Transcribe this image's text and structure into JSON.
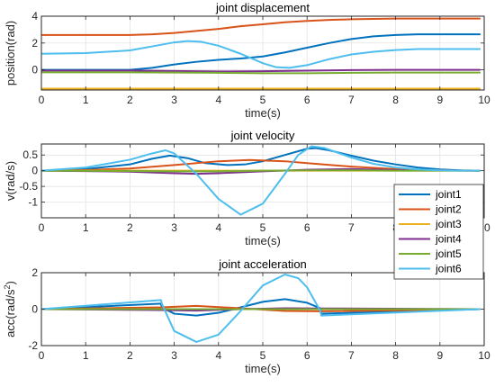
{
  "chart_data": [
    {
      "type": "line",
      "title": "joint displacement",
      "xlabel": "time(s)",
      "ylabel": "position(rad)",
      "ylabel_sup": "",
      "xlim": [
        0,
        10
      ],
      "ylim": [
        -1.5,
        4
      ],
      "xticks": [
        0,
        1,
        2,
        3,
        4,
        5,
        6,
        7,
        8,
        9,
        10
      ],
      "yticks": [
        0,
        2,
        4
      ],
      "grid": true,
      "series": [
        {
          "name": "joint1",
          "color": "#0072BD",
          "x": [
            0,
            1,
            2,
            2.5,
            3,
            3.5,
            4,
            4.5,
            5,
            5.5,
            6,
            6.5,
            7,
            7.5,
            8,
            8.5,
            9,
            9.5,
            9.9
          ],
          "y": [
            0,
            0,
            0,
            0.15,
            0.4,
            0.6,
            0.75,
            0.85,
            1.0,
            1.3,
            1.65,
            2.0,
            2.3,
            2.5,
            2.6,
            2.65,
            2.65,
            2.65,
            2.65
          ]
        },
        {
          "name": "joint2",
          "color": "#D95319",
          "x": [
            0,
            1,
            2,
            2.5,
            3,
            3.5,
            4,
            4.5,
            5,
            5.5,
            6,
            6.5,
            7,
            7.5,
            8,
            8.5,
            9,
            9.5,
            9.9
          ],
          "y": [
            2.6,
            2.6,
            2.6,
            2.65,
            2.75,
            2.9,
            3.05,
            3.25,
            3.4,
            3.55,
            3.65,
            3.72,
            3.77,
            3.8,
            3.82,
            3.82,
            3.82,
            3.82,
            3.82
          ]
        },
        {
          "name": "joint3",
          "color": "#EDB120",
          "x": [
            0,
            9.9
          ],
          "y": [
            -1.4,
            -1.4
          ]
        },
        {
          "name": "joint4",
          "color": "#7E2F8E",
          "x": [
            0,
            2,
            3,
            4,
            5,
            6,
            7,
            8,
            9,
            9.9
          ],
          "y": [
            -0.05,
            -0.05,
            -0.08,
            -0.12,
            -0.1,
            -0.06,
            -0.02,
            0,
            0,
            0
          ]
        },
        {
          "name": "joint5",
          "color": "#77AC30",
          "x": [
            0,
            2,
            3,
            4,
            5,
            6,
            7,
            8,
            9,
            9.9
          ],
          "y": [
            -0.18,
            -0.18,
            -0.2,
            -0.22,
            -0.25,
            -0.25,
            -0.22,
            -0.2,
            -0.2,
            -0.2
          ]
        },
        {
          "name": "joint6",
          "color": "#4DBEEE",
          "x": [
            0,
            1,
            2,
            2.5,
            3,
            3.3,
            3.6,
            4,
            4.5,
            5,
            5.3,
            5.6,
            6,
            6.5,
            7,
            7.5,
            8,
            8.5,
            9,
            9.5,
            9.9
          ],
          "y": [
            1.2,
            1.25,
            1.45,
            1.75,
            2.05,
            2.15,
            2.1,
            1.8,
            1.2,
            0.5,
            0.2,
            0.15,
            0.35,
            0.8,
            1.15,
            1.35,
            1.48,
            1.55,
            1.55,
            1.55,
            1.55
          ]
        }
      ]
    },
    {
      "type": "line",
      "title": "joint velocity",
      "xlabel": "time(s)",
      "ylabel": "v(rad/s)",
      "ylabel_sup": "",
      "xlim": [
        0,
        10
      ],
      "ylim": [
        -1.5,
        0.85
      ],
      "xticks": [
        0,
        1,
        2,
        3,
        4,
        5,
        6,
        7,
        8,
        9,
        10
      ],
      "yticks": [
        -1,
        -0.5,
        0,
        0.5
      ],
      "ytick_labels": [
        "-1",
        "-0.5",
        "0",
        "0.5"
      ],
      "grid": true,
      "series": [
        {
          "name": "joint1",
          "color": "#0072BD",
          "x": [
            0,
            1,
            2,
            2.5,
            2.9,
            3.3,
            3.7,
            4.2,
            4.6,
            5,
            5.5,
            6,
            6.2,
            6.5,
            7,
            7.5,
            8,
            8.5,
            9,
            9.5,
            9.9
          ],
          "y": [
            0,
            0.05,
            0.2,
            0.38,
            0.48,
            0.4,
            0.24,
            0.18,
            0.2,
            0.3,
            0.5,
            0.7,
            0.72,
            0.65,
            0.48,
            0.32,
            0.2,
            0.1,
            0.04,
            0.01,
            0
          ]
        },
        {
          "name": "joint2",
          "color": "#D95319",
          "x": [
            0,
            1,
            2,
            3,
            4,
            4.7,
            5.5,
            6,
            7,
            8,
            9,
            9.9
          ],
          "y": [
            0,
            0.02,
            0.07,
            0.18,
            0.3,
            0.34,
            0.3,
            0.24,
            0.13,
            0.05,
            0.01,
            0
          ]
        },
        {
          "name": "joint3",
          "color": "#EDB120",
          "x": [
            0,
            9.9
          ],
          "y": [
            0,
            0
          ]
        },
        {
          "name": "joint4",
          "color": "#7E2F8E",
          "x": [
            0,
            2,
            3,
            3.5,
            4,
            5,
            6,
            7,
            8,
            9.9
          ],
          "y": [
            0,
            -0.03,
            -0.08,
            -0.1,
            -0.08,
            -0.02,
            0.03,
            0.05,
            0.02,
            0
          ]
        },
        {
          "name": "joint5",
          "color": "#77AC30",
          "x": [
            0,
            2,
            3,
            4,
            5,
            6,
            7,
            8,
            9.9
          ],
          "y": [
            0,
            -0.01,
            -0.02,
            -0.02,
            0,
            0.01,
            0.01,
            0,
            0
          ]
        },
        {
          "name": "joint6",
          "color": "#4DBEEE",
          "x": [
            0,
            1,
            2,
            2.5,
            2.8,
            3,
            3.5,
            4,
            4.5,
            5,
            5.5,
            5.8,
            6.1,
            6.4,
            7,
            7.5,
            8,
            8.5,
            9,
            9.5,
            9.9
          ],
          "y": [
            0,
            0.1,
            0.35,
            0.55,
            0.65,
            0.55,
            -0.1,
            -0.9,
            -1.4,
            -1.05,
            -0.1,
            0.5,
            0.78,
            0.72,
            0.42,
            0.22,
            0.1,
            0.04,
            0.01,
            0,
            0
          ]
        }
      ]
    },
    {
      "type": "line",
      "title": "joint acceleration",
      "xlabel": "time(s)",
      "ylabel": "acc(rad/s",
      "ylabel_sup": "2",
      "ylabel_end": ")",
      "xlim": [
        0,
        10
      ],
      "ylim": [
        -2,
        2
      ],
      "xticks": [
        0,
        1,
        2,
        3,
        4,
        5,
        6,
        7,
        8,
        9,
        10
      ],
      "yticks": [
        -2,
        0,
        2
      ],
      "grid": true,
      "series": [
        {
          "name": "joint1",
          "color": "#0072BD",
          "x": [
            0,
            2.7,
            2.72,
            3.0,
            3.5,
            4.0,
            4.5,
            5.0,
            5.5,
            6.0,
            6.3,
            6.32,
            9.9
          ],
          "y": [
            0,
            0.3,
            0.1,
            -0.25,
            -0.35,
            -0.2,
            0.1,
            0.4,
            0.55,
            0.35,
            0.05,
            -0.25,
            0
          ]
        },
        {
          "name": "joint2",
          "color": "#D95319",
          "x": [
            0,
            2.7,
            3.5,
            4.5,
            5.5,
            6.3,
            9.9
          ],
          "y": [
            0,
            0.1,
            0.18,
            0.05,
            -0.1,
            -0.12,
            0
          ]
        },
        {
          "name": "joint3",
          "color": "#EDB120",
          "x": [
            0,
            9.9
          ],
          "y": [
            0,
            0
          ]
        },
        {
          "name": "joint4",
          "color": "#7E2F8E",
          "x": [
            0,
            2.7,
            3.5,
            4.5,
            5.5,
            6.3,
            9.9
          ],
          "y": [
            0,
            -0.05,
            -0.08,
            0,
            0.05,
            0.04,
            0
          ]
        },
        {
          "name": "joint5",
          "color": "#77AC30",
          "x": [
            0,
            9.9
          ],
          "y": [
            0,
            0
          ]
        },
        {
          "name": "joint6",
          "color": "#4DBEEE",
          "x": [
            0,
            2.7,
            2.72,
            3.0,
            3.5,
            4.0,
            4.5,
            5.0,
            5.5,
            5.8,
            6.0,
            6.3,
            6.32,
            9.9
          ],
          "y": [
            0,
            0.5,
            0.3,
            -1.2,
            -1.8,
            -1.4,
            -0.1,
            1.3,
            1.9,
            1.7,
            1.2,
            -0.1,
            -0.35,
            0
          ]
        }
      ]
    }
  ],
  "legend": {
    "placement": "right",
    "entries": [
      {
        "label": "joint1",
        "color": "#0072BD"
      },
      {
        "label": "joint2",
        "color": "#D95319"
      },
      {
        "label": "joint3",
        "color": "#EDB120"
      },
      {
        "label": "joint4",
        "color": "#7E2F8E"
      },
      {
        "label": "joint5",
        "color": "#77AC30"
      },
      {
        "label": "joint6",
        "color": "#4DBEEE"
      }
    ]
  }
}
